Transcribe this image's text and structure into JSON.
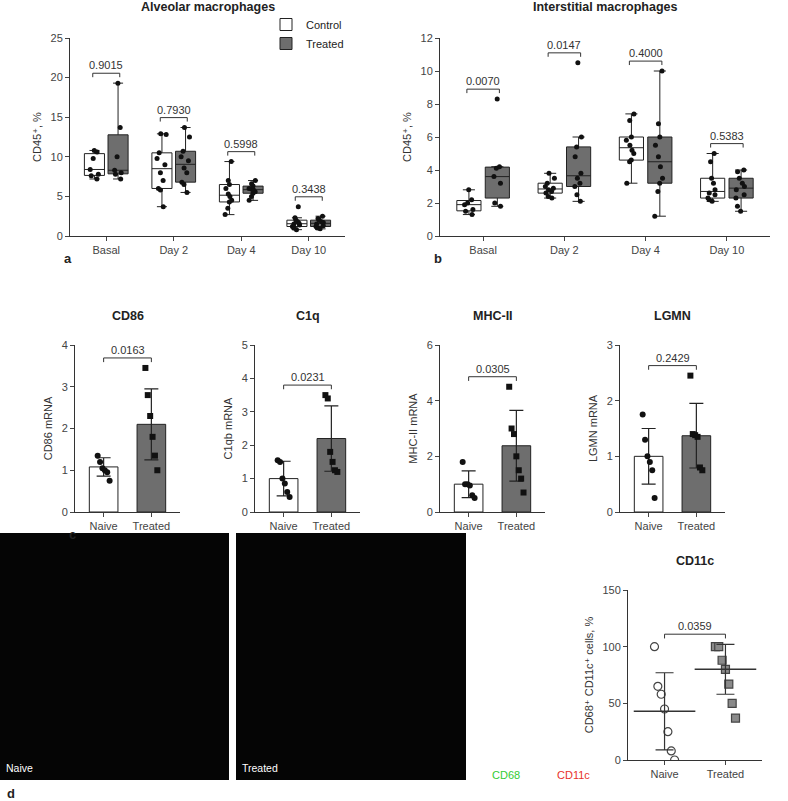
{
  "chart_data": [
    {
      "type": "box",
      "panel": "a",
      "title": "Alveolar macrophages",
      "ylabel": "CD45⁺, %",
      "categories": [
        "Basal",
        "Day 2",
        "Day 4",
        "Day 10"
      ],
      "series": [
        {
          "name": "Control",
          "color": "#ffffff",
          "values": [
            [
              10.8,
              10.6,
              9.8,
              8.4,
              7.8,
              7.6,
              7.2
            ],
            [
              12.9,
              12.8,
              10.5,
              9.8,
              9.0,
              8.0,
              7.0,
              6.0,
              5.8,
              3.7
            ],
            [
              9.4,
              7.0,
              6.5,
              6.0,
              5.3,
              5.0,
              4.5,
              4.3,
              3.5,
              2.7
            ],
            [
              3.7,
              2.3,
              2.0,
              1.8,
              1.6,
              1.5,
              1.4,
              1.2,
              1.0,
              0.8
            ]
          ]
        },
        {
          "name": "Treated",
          "color": "#6e6e6e",
          "values": [
            [
              19.3,
              13.7,
              10.0,
              8.3,
              8.0,
              7.8,
              7.2
            ],
            [
              13.7,
              12.5,
              10.7,
              10.0,
              9.5,
              8.6,
              8.0,
              6.8,
              6.5,
              5.5
            ],
            [
              7.0,
              6.6,
              6.3,
              6.0,
              5.9,
              5.8,
              5.6,
              5.4,
              5.0,
              4.5
            ],
            [
              2.5,
              2.2,
              2.0,
              1.8,
              1.7,
              1.5,
              1.3,
              1.2,
              1.0,
              0.9
            ]
          ]
        }
      ],
      "ylim": [
        0,
        25
      ],
      "yticks": [
        0,
        5,
        10,
        15,
        20,
        25
      ],
      "legend": "upper right",
      "annotations": [
        {
          "category": "Basal",
          "text": "0.9015"
        },
        {
          "category": "Day 2",
          "text": "0.7930"
        },
        {
          "category": "Day 4",
          "text": "0.5998"
        },
        {
          "category": "Day 10",
          "text": "0.3438"
        }
      ]
    },
    {
      "type": "box",
      "panel": "b",
      "title": "Interstitial macrophages",
      "ylabel": "CD45⁺, %",
      "categories": [
        "Basal",
        "Day 2",
        "Day 4",
        "Day 10"
      ],
      "series": [
        {
          "name": "Control",
          "color": "#ffffff",
          "values": [
            [
              2.8,
              2.2,
              2.0,
              1.9,
              1.6,
              1.5,
              1.3
            ],
            [
              3.8,
              3.5,
              3.2,
              3.0,
              2.9,
              2.8,
              2.7,
              2.6,
              2.4,
              2.3
            ],
            [
              7.4,
              7.0,
              6.0,
              5.8,
              5.5,
              5.2,
              5.0,
              4.6,
              4.5,
              3.2
            ],
            [
              5.0,
              4.5,
              3.5,
              3.2,
              2.8,
              2.6,
              2.5,
              2.3,
              2.2,
              2.1
            ]
          ]
        },
        {
          "name": "Treated",
          "color": "#6e6e6e",
          "values": [
            [
              8.3,
              4.2,
              4.1,
              3.6,
              3.2,
              2.0,
              1.8
            ],
            [
              10.5,
              6.0,
              5.4,
              4.8,
              3.8,
              3.5,
              3.2,
              3.0,
              2.5,
              2.1
            ],
            [
              10.0,
              6.8,
              6.0,
              5.5,
              4.8,
              4.2,
              3.5,
              3.2,
              2.7,
              1.2
            ],
            [
              4.0,
              3.9,
              3.5,
              3.2,
              3.0,
              2.8,
              2.5,
              2.3,
              1.8,
              1.5
            ]
          ]
        }
      ],
      "ylim": [
        0,
        12
      ],
      "yticks": [
        0,
        2,
        4,
        6,
        8,
        10,
        12
      ],
      "annotations": [
        {
          "category": "Basal",
          "text": "0.0070"
        },
        {
          "category": "Day 2",
          "text": "0.0147"
        },
        {
          "category": "Day 4",
          "text": "0.4000"
        },
        {
          "category": "Day 10",
          "text": "0.5383"
        }
      ]
    },
    {
      "type": "bar",
      "panel": "c",
      "title": "CD86",
      "ylabel": "CD86 mRNA",
      "categories": [
        "Naive",
        "Treated"
      ],
      "values": [
        1.08,
        2.1
      ],
      "errors": [
        0.22,
        0.85
      ],
      "colors": [
        "#ffffff",
        "#6e6e6e"
      ],
      "points": [
        {
          "marker": "circle",
          "values": [
            1.35,
            1.2,
            1.05,
            1.0,
            0.95,
            0.75
          ]
        },
        {
          "marker": "square",
          "values": [
            3.45,
            2.8,
            2.3,
            1.8,
            1.35,
            1.0
          ]
        }
      ],
      "ylim": [
        0,
        4
      ],
      "yticks": [
        0,
        1,
        2,
        3,
        4
      ],
      "annotations": [
        {
          "text": "0.0163"
        }
      ]
    },
    {
      "type": "bar",
      "title": "C1q",
      "ylabel": "C1qb mRNA",
      "categories": [
        "Naive",
        "Treated"
      ],
      "values": [
        1.0,
        2.2
      ],
      "errors": [
        0.52,
        0.98
      ],
      "colors": [
        "#ffffff",
        "#6e6e6e"
      ],
      "points": [
        {
          "marker": "circle",
          "values": [
            1.55,
            1.5,
            1.0,
            0.85,
            0.6,
            0.45
          ]
        },
        {
          "marker": "square",
          "values": [
            3.5,
            3.4,
            1.8,
            1.5,
            1.25,
            1.2
          ]
        }
      ],
      "ylim": [
        0,
        5
      ],
      "yticks": [
        0,
        1,
        2,
        3,
        4,
        5
      ],
      "annotations": [
        {
          "text": "0.0231"
        }
      ]
    },
    {
      "type": "bar",
      "title": "MHC-II",
      "ylabel": "MHC-II mRNA",
      "categories": [
        "Naive",
        "Treated"
      ],
      "values": [
        1.0,
        2.38
      ],
      "errors": [
        0.48,
        1.27
      ],
      "colors": [
        "#ffffff",
        "#6e6e6e"
      ],
      "points": [
        {
          "marker": "circle",
          "values": [
            1.8,
            1.0,
            1.0,
            0.95,
            0.6,
            0.5
          ]
        },
        {
          "marker": "square",
          "values": [
            4.5,
            3.0,
            2.8,
            2.0,
            1.5,
            1.2,
            0.7
          ]
        }
      ],
      "ylim": [
        0,
        6
      ],
      "yticks": [
        0,
        2,
        4,
        6
      ],
      "annotations": [
        {
          "text": "0.0305"
        }
      ]
    },
    {
      "type": "bar",
      "title": "LGMN",
      "ylabel": "LGMN mRNA",
      "categories": [
        "Naive",
        "Treated"
      ],
      "values": [
        1.0,
        1.37
      ],
      "errors": [
        0.5,
        0.58
      ],
      "colors": [
        "#ffffff",
        "#6e6e6e"
      ],
      "points": [
        {
          "marker": "circle",
          "values": [
            1.75,
            1.3,
            1.0,
            0.9,
            0.75,
            0.25
          ]
        },
        {
          "marker": "square",
          "values": [
            2.45,
            1.4,
            1.38,
            1.35,
            0.8,
            0.75
          ]
        }
      ],
      "ylim": [
        0,
        3
      ],
      "yticks": [
        0,
        1,
        2,
        3
      ],
      "annotations": [
        {
          "text": "0.2429"
        }
      ]
    },
    {
      "type": "scatter",
      "panel": "d",
      "title": "CD11c",
      "ylabel": "CD68⁺ CD11c⁺ cells, %",
      "categories": [
        "Naive",
        "Treated"
      ],
      "values": [
        43,
        80
      ],
      "errors": [
        34,
        22
      ],
      "colors": [
        "#ffffff",
        "#8a8a8a"
      ],
      "points": [
        {
          "marker": "circle",
          "values": [
            100,
            65,
            58,
            45,
            25,
            8,
            0
          ]
        },
        {
          "marker": "square",
          "values": [
            100,
            100,
            88,
            80,
            67,
            50,
            37
          ]
        }
      ],
      "ylim": [
        0,
        150
      ],
      "yticks": [
        0,
        50,
        100,
        150
      ],
      "annotations": [
        {
          "text": "0.0359"
        }
      ],
      "micrographs": {
        "labels": [
          "Naive",
          "Treated"
        ],
        "channels": [
          {
            "name": "CD68",
            "color": "#33cc33"
          },
          {
            "name": "CD11c",
            "color": "#e8322a"
          }
        ]
      }
    }
  ]
}
